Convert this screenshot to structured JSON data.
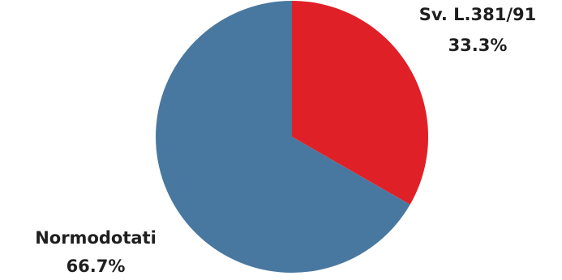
{
  "chart_data": {
    "type": "pie",
    "title": "",
    "start_angle_deg": 0,
    "direction": "clockwise",
    "slices": [
      {
        "name": "Sv. L.381/91",
        "value": 33.3,
        "label": "33.3%",
        "color": "#e02027"
      },
      {
        "name": "Normodotati",
        "value": 66.7,
        "label": "66.7%",
        "color": "#4878a0"
      }
    ]
  }
}
